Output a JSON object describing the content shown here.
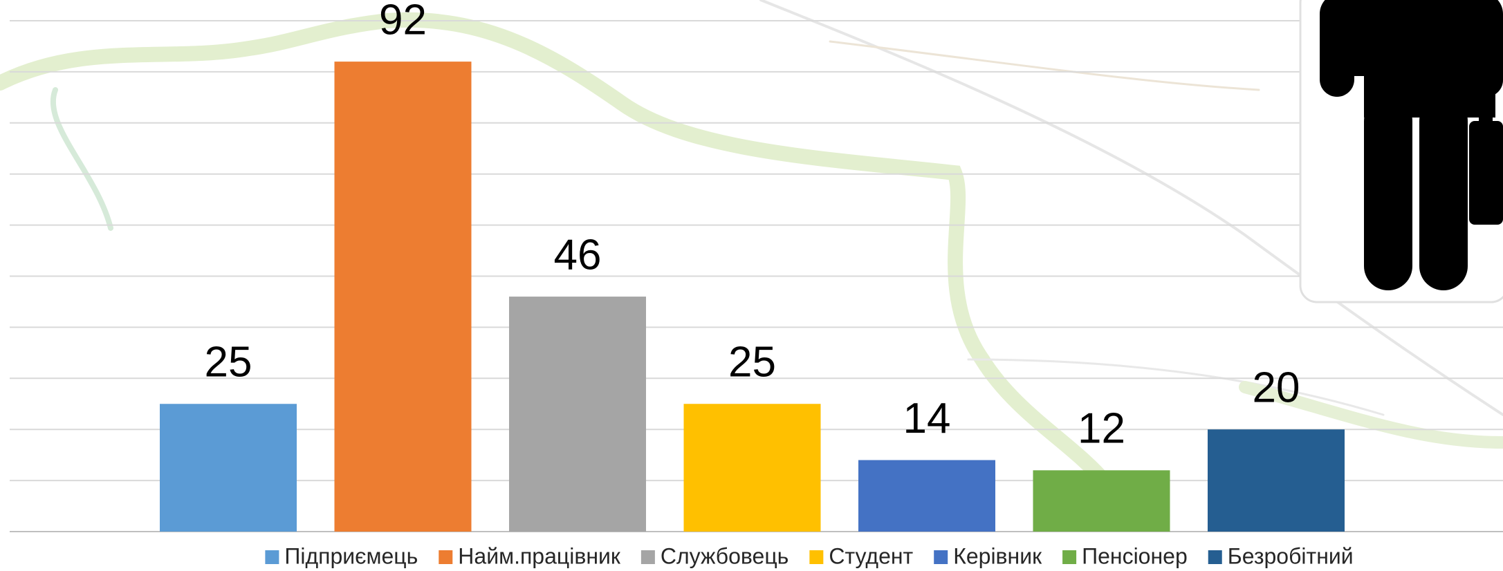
{
  "chart_data": {
    "type": "bar",
    "categories": [
      "Підприємець",
      "Найм.працівник",
      "Службовець",
      "Студент",
      "Керівник",
      "Пенсіонер",
      "Безробітний"
    ],
    "values": [
      25,
      92,
      46,
      25,
      14,
      12,
      20
    ],
    "colors": [
      "#5b9bd5",
      "#ed7d31",
      "#a5a5a5",
      "#ffc000",
      "#4472c4",
      "#70ad47",
      "#255e91"
    ],
    "ylim": [
      0,
      100
    ],
    "yticks": [
      0,
      10,
      20,
      30,
      40,
      50,
      60,
      70,
      80,
      90,
      100
    ],
    "grid": true,
    "legend": "bottom"
  }
}
